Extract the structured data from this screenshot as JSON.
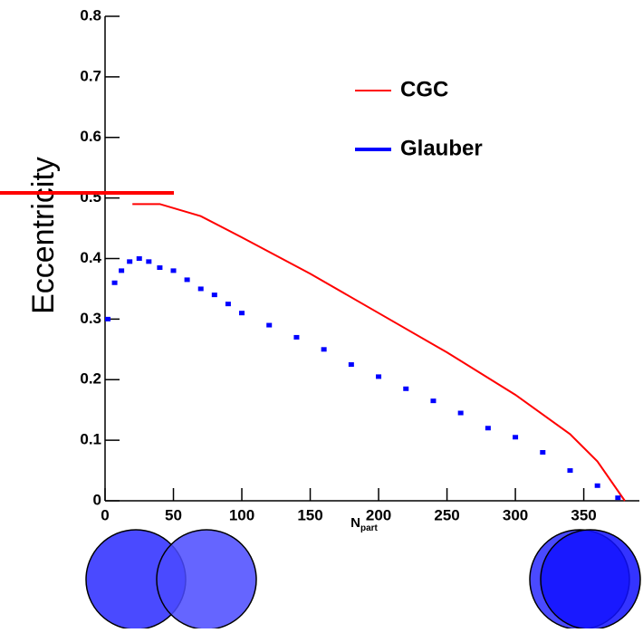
{
  "chart_data": {
    "type": "line",
    "y_label": "Eccentricity",
    "x_label": "N",
    "x_label_sub": "part",
    "xlim": [
      0,
      390
    ],
    "xticks": [
      0,
      50,
      100,
      150,
      200,
      250,
      300,
      350
    ],
    "ylim": [
      0,
      0.8
    ],
    "yticks": [
      0,
      0.1,
      0.2,
      0.3,
      0.4,
      0.5,
      0.6,
      0.7,
      0.8
    ],
    "series": [
      {
        "name": "CGC",
        "color": "#ff0000",
        "style": "line",
        "x": [
          20,
          40,
          70,
          100,
          150,
          200,
          250,
          300,
          340,
          360,
          380
        ],
        "values": [
          0.49,
          0.49,
          0.47,
          0.435,
          0.375,
          0.31,
          0.245,
          0.175,
          0.11,
          0.065,
          0
        ]
      },
      {
        "name": "Glauber",
        "color": "#0000ff",
        "style": "steps",
        "x": [
          2,
          7,
          12,
          18,
          25,
          32,
          40,
          50,
          60,
          70,
          80,
          90,
          100,
          120,
          140,
          160,
          180,
          200,
          220,
          240,
          260,
          280,
          300,
          320,
          340,
          360,
          375
        ],
        "values": [
          0.3,
          0.36,
          0.38,
          0.395,
          0.4,
          0.395,
          0.385,
          0.38,
          0.365,
          0.35,
          0.34,
          0.325,
          0.31,
          0.29,
          0.27,
          0.25,
          0.225,
          0.205,
          0.185,
          0.165,
          0.145,
          0.12,
          0.105,
          0.08,
          0.05,
          0.025,
          0.005
        ]
      }
    ]
  }
}
